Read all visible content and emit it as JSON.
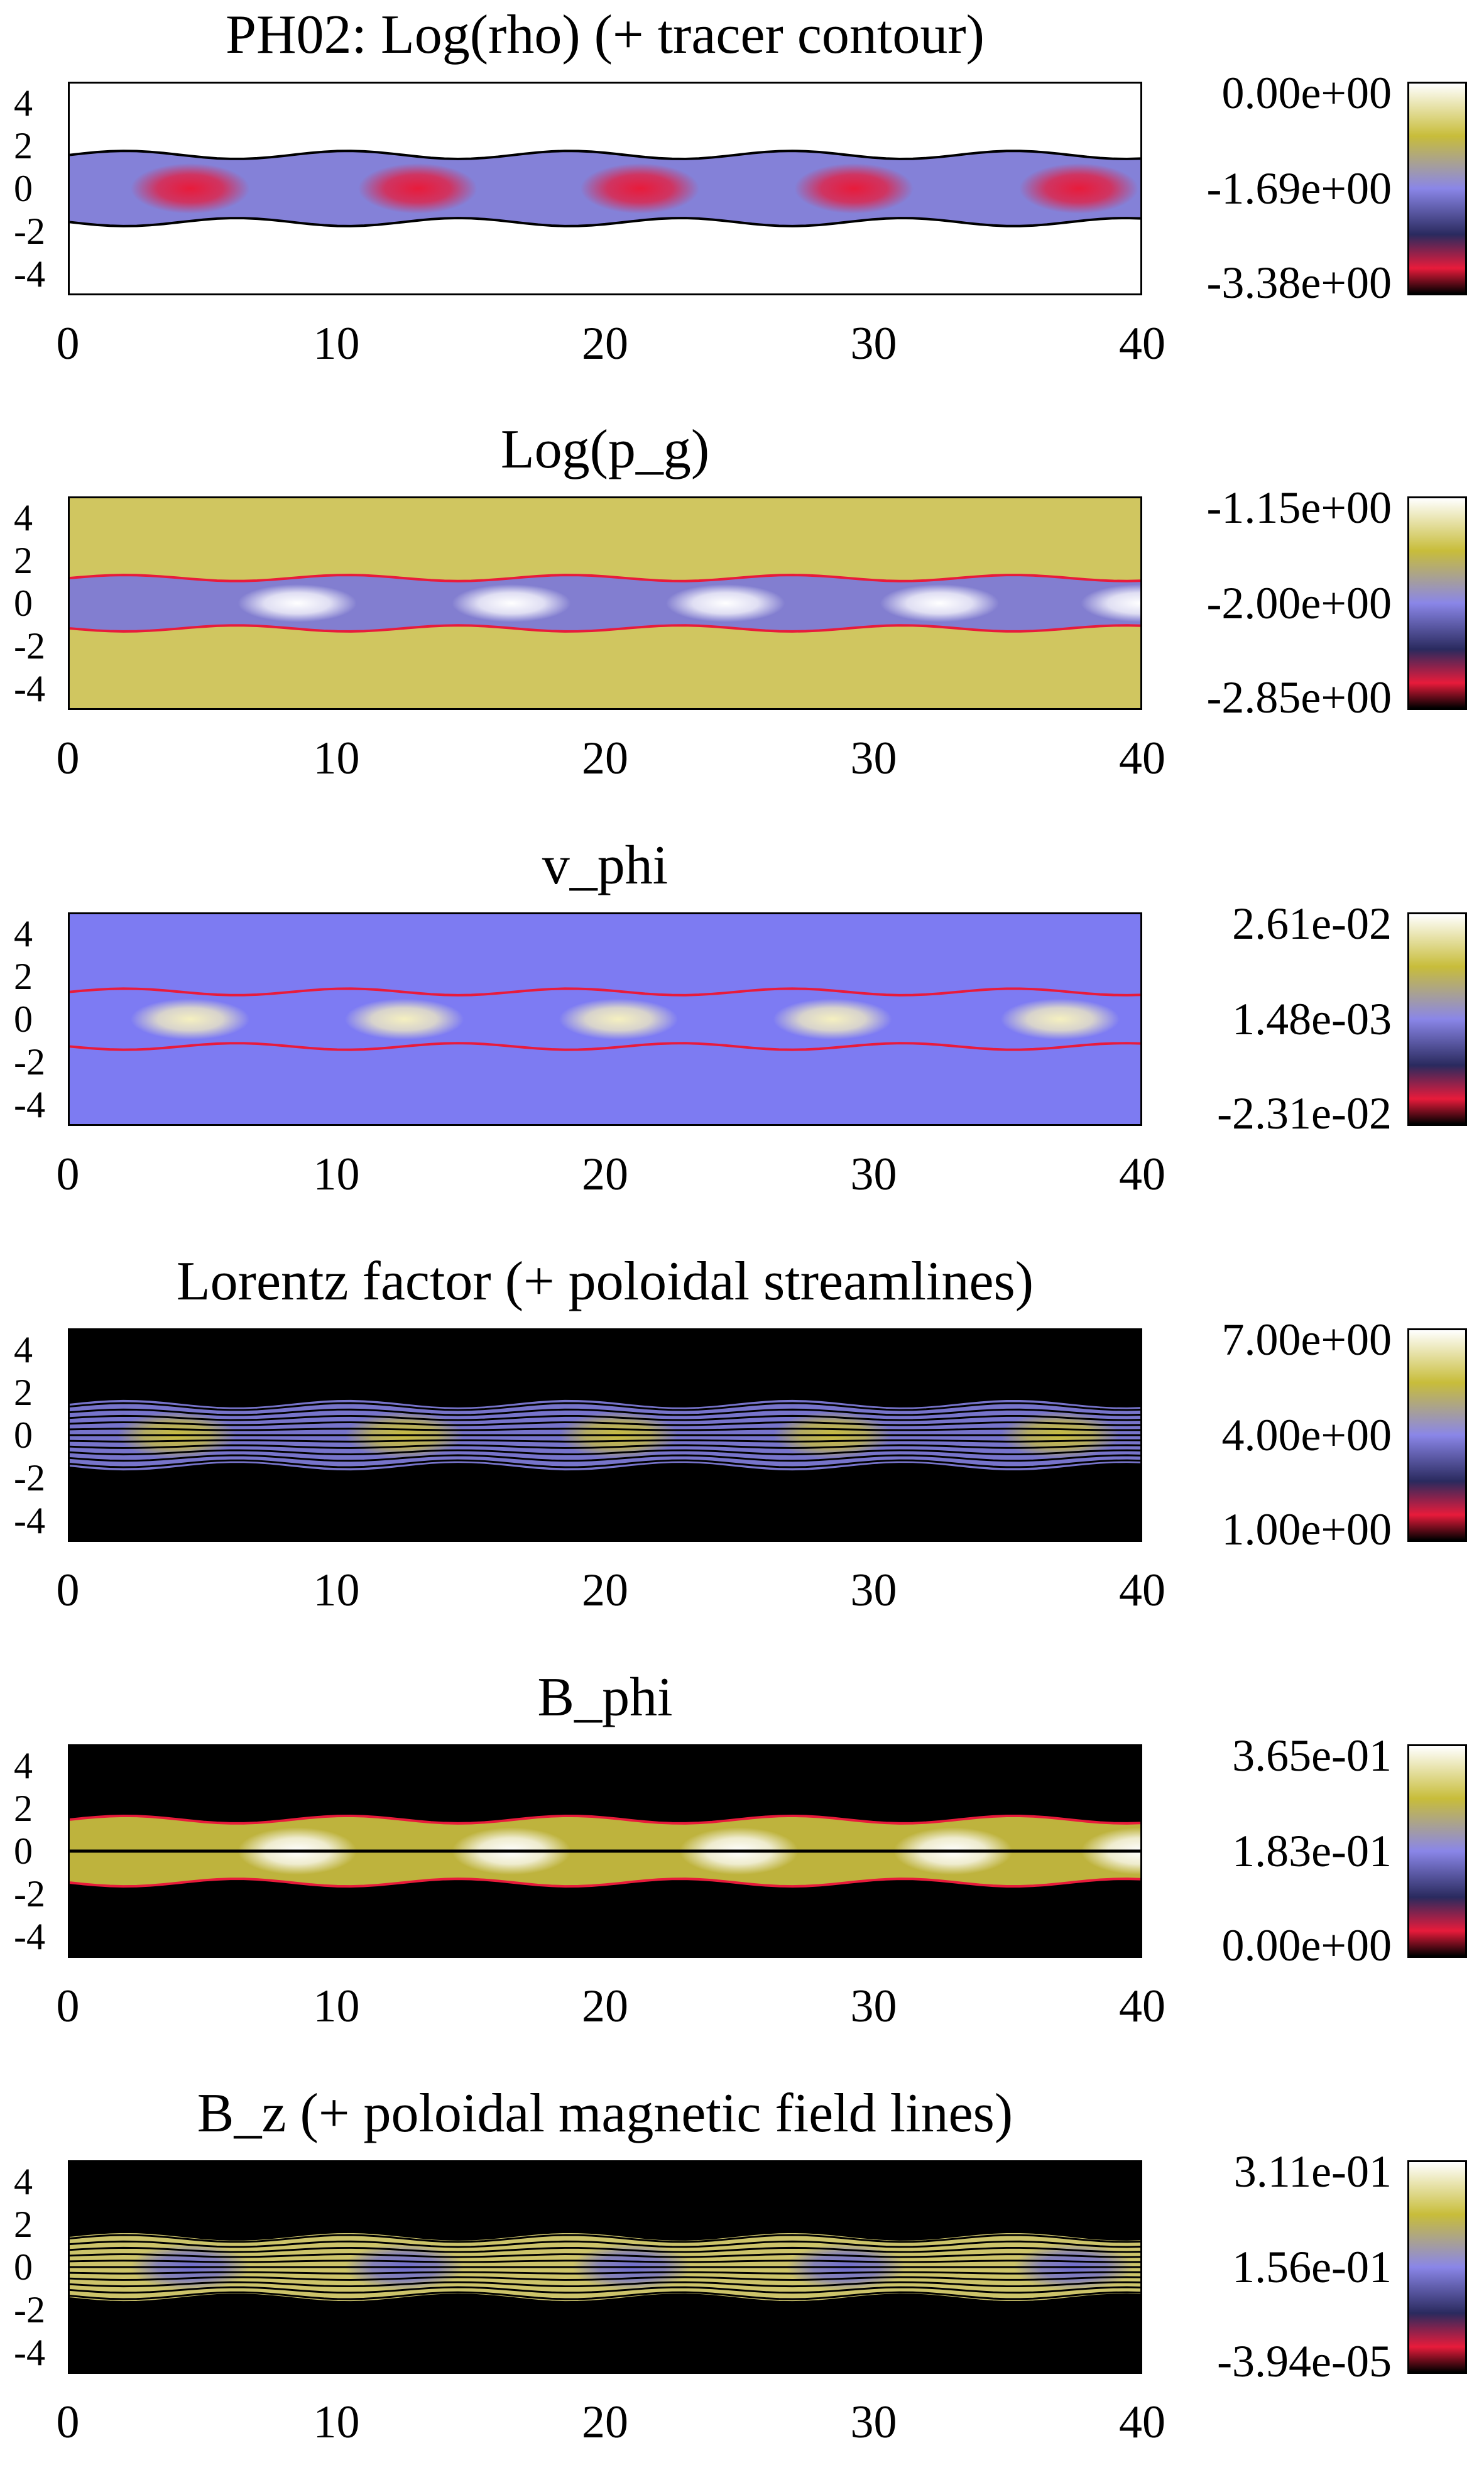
{
  "chart_data": [
    {
      "type": "heatmap",
      "title": "PH02: Log(rho) (+ tracer contour)",
      "x_ticks": [
        "0",
        "10",
        "20",
        "30",
        "40"
      ],
      "y_ticks": [
        "4",
        "2",
        "0",
        "-2",
        "-4"
      ],
      "xlim": [
        0,
        40
      ],
      "ylim": [
        -5,
        5
      ],
      "colorbar": {
        "labels": [
          "0.00e+00",
          "-1.69e+00",
          "-3.38e+00"
        ],
        "max": 0.0,
        "mid": -1.69,
        "min": -3.38
      },
      "background": "#ffffff",
      "band": "#7d7ad6",
      "knot": "#e81b3b",
      "overlay": "#000000",
      "knots_x": [
        4.5,
        13,
        21.3,
        29.3,
        37.7
      ],
      "jet_halfwidth": 1.6
    },
    {
      "type": "heatmap",
      "title": "Log(p_g)",
      "x_ticks": [
        "0",
        "10",
        "20",
        "30",
        "40"
      ],
      "y_ticks": [
        "4",
        "2",
        "0",
        "-2",
        "-4"
      ],
      "xlim": [
        0,
        40
      ],
      "ylim": [
        -5,
        5
      ],
      "colorbar": {
        "labels": [
          "-1.15e+00",
          "-2.00e+00",
          "-2.85e+00"
        ],
        "max": -1.15,
        "mid": -2.0,
        "min": -2.85
      },
      "background": "#d0c660",
      "band": "#7d7ad6",
      "knot": "#ffffff",
      "overlay": "#e81b3b",
      "knots_x": [
        8.5,
        16.5,
        24.5,
        32.5,
        40
      ],
      "jet_halfwidth": 1.2
    },
    {
      "type": "heatmap",
      "title": "v_phi",
      "x_ticks": [
        "0",
        "10",
        "20",
        "30",
        "40"
      ],
      "y_ticks": [
        "4",
        "2",
        "0",
        "-2",
        "-4"
      ],
      "xlim": [
        0,
        40
      ],
      "ylim": [
        -5,
        5
      ],
      "colorbar": {
        "labels": [
          "2.61e-02",
          "1.48e-03",
          "-2.31e-02"
        ],
        "max": 0.0261,
        "mid": 0.00148,
        "min": -0.0231
      },
      "background": "#7d7bf2",
      "band": "#7d7bf2",
      "knot": "#f5f0c0",
      "overlay": "#e81b3b",
      "knots_x": [
        4.5,
        12.5,
        20.5,
        28.5,
        37
      ],
      "jet_halfwidth": 1.3
    },
    {
      "type": "heatmap",
      "title": "Lorentz factor (+ poloidal streamlines)",
      "x_ticks": [
        "0",
        "10",
        "20",
        "30",
        "40"
      ],
      "y_ticks": [
        "4",
        "2",
        "0",
        "-2",
        "-4"
      ],
      "xlim": [
        0,
        40
      ],
      "ylim": [
        -5,
        5
      ],
      "colorbar": {
        "labels": [
          "7.00e+00",
          "4.00e+00",
          "1.00e+00"
        ],
        "max": 7.0,
        "mid": 4.0,
        "min": 1.0
      },
      "background": "#000000",
      "band": "#7d7ad6",
      "knot": "#c8bd40",
      "overlay": "#000000",
      "knots_x": [
        4,
        12.5,
        20.5,
        28.5,
        37
      ],
      "jet_halfwidth": 1.5
    },
    {
      "type": "heatmap",
      "title": "B_phi",
      "x_ticks": [
        "0",
        "10",
        "20",
        "30",
        "40"
      ],
      "y_ticks": [
        "4",
        "2",
        "0",
        "-2",
        "-4"
      ],
      "xlim": [
        0,
        40
      ],
      "ylim": [
        -5,
        5
      ],
      "colorbar": {
        "labels": [
          "3.65e-01",
          "1.83e-01",
          "0.00e+00"
        ],
        "max": 0.365,
        "mid": 0.183,
        "min": 0.0
      },
      "background": "#000000",
      "band": "#c8bd40",
      "knot": "#ffffff",
      "overlay": "#e81b3b",
      "knots_x": [
        8.5,
        16.5,
        25,
        33,
        40
      ],
      "jet_halfwidth": 1.5
    },
    {
      "type": "heatmap",
      "title": "B_z (+ poloidal magnetic field lines)",
      "x_ticks": [
        "0",
        "10",
        "20",
        "30",
        "40"
      ],
      "y_ticks": [
        "4",
        "2",
        "0",
        "-2",
        "-4"
      ],
      "xlim": [
        0,
        40
      ],
      "ylim": [
        -5,
        5
      ],
      "colorbar": {
        "labels": [
          "3.11e-01",
          "1.56e-01",
          "-3.94e-05"
        ],
        "max": 0.311,
        "mid": 0.156,
        "min": -3.94e-05
      },
      "background": "#000000",
      "band": "#d8cf70",
      "knot": "#6f6dd0",
      "overlay": "#000000",
      "knots_x": [
        4.5,
        12.5,
        21,
        29,
        37.5
      ],
      "jet_halfwidth": 1.5
    }
  ]
}
